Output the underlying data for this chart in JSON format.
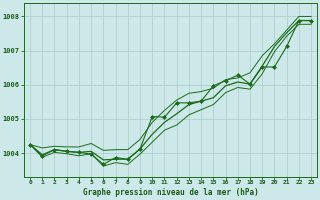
{
  "title": "Graphe pression niveau de la mer (hPa)",
  "bg_color": "#cde8e8",
  "grid_color": "#aacccc",
  "line_color": "#1a6b1a",
  "text_color": "#1a5a1a",
  "xlim": [
    -0.5,
    23.5
  ],
  "ylim": [
    1003.3,
    1008.4
  ],
  "yticks": [
    1004,
    1005,
    1006,
    1007,
    1008
  ],
  "xticks": [
    0,
    1,
    2,
    3,
    4,
    5,
    6,
    7,
    8,
    9,
    10,
    11,
    12,
    13,
    14,
    15,
    16,
    17,
    18,
    19,
    20,
    21,
    22,
    23
  ],
  "series": {
    "upper": [
      1004.25,
      1004.15,
      1004.2,
      1004.18,
      1004.18,
      1004.28,
      1004.08,
      1004.1,
      1004.1,
      1004.4,
      1004.9,
      1005.25,
      1005.55,
      1005.75,
      1005.8,
      1005.9,
      1006.15,
      1006.2,
      1006.35,
      1006.85,
      1007.2,
      1007.6,
      1008.0,
      1008.0
    ],
    "smooth": [
      1004.25,
      1003.95,
      1004.1,
      1004.05,
      1004.02,
      1004.05,
      1003.8,
      1003.82,
      1003.82,
      1004.12,
      1004.55,
      1004.9,
      1005.15,
      1005.42,
      1005.52,
      1005.62,
      1005.97,
      1006.08,
      1006.02,
      1006.55,
      1007.12,
      1007.52,
      1007.88,
      1007.88
    ],
    "lower": [
      1004.25,
      1003.88,
      1004.02,
      1003.98,
      1003.92,
      1003.98,
      1003.62,
      1003.72,
      1003.67,
      1003.97,
      1004.32,
      1004.67,
      1004.82,
      1005.12,
      1005.27,
      1005.42,
      1005.77,
      1005.92,
      1005.87,
      1006.32,
      1006.97,
      1007.42,
      1007.77,
      1007.77
    ],
    "markers": [
      1004.25,
      1003.92,
      1004.1,
      1004.05,
      1004.02,
      1003.97,
      1003.67,
      1003.87,
      1003.82,
      1004.12,
      1005.07,
      1005.05,
      1005.47,
      1005.47,
      1005.52,
      1005.97,
      1006.12,
      1006.28,
      1006.02,
      1006.52,
      1006.52,
      1007.12,
      1007.88,
      1007.88
    ]
  }
}
